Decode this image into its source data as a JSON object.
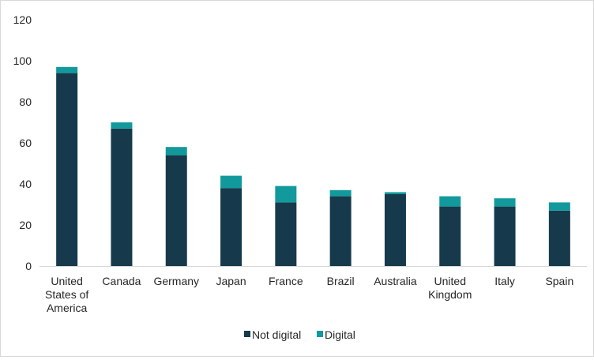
{
  "chart_data": {
    "type": "bar",
    "stacked": true,
    "categories": [
      [
        "United",
        "States of",
        "America"
      ],
      [
        "Canada"
      ],
      [
        "Germany"
      ],
      [
        "Japan"
      ],
      [
        "France"
      ],
      [
        "Brazil"
      ],
      [
        "Australia"
      ],
      [
        "United",
        "Kingdom"
      ],
      [
        "Italy"
      ],
      [
        "Spain"
      ]
    ],
    "series": [
      {
        "name": "Not digital",
        "color": "#163a4b",
        "values": [
          94,
          67,
          54,
          38,
          31,
          34,
          35,
          29,
          29,
          27
        ]
      },
      {
        "name": "Digital",
        "color": "#12999c",
        "values": [
          3,
          3,
          4,
          6,
          8,
          3,
          1,
          5,
          4,
          4
        ]
      }
    ],
    "ylim": [
      0,
      120
    ],
    "yticks": [
      0,
      20,
      40,
      60,
      80,
      100,
      120
    ],
    "grid": false,
    "legend": "bottom-center"
  }
}
